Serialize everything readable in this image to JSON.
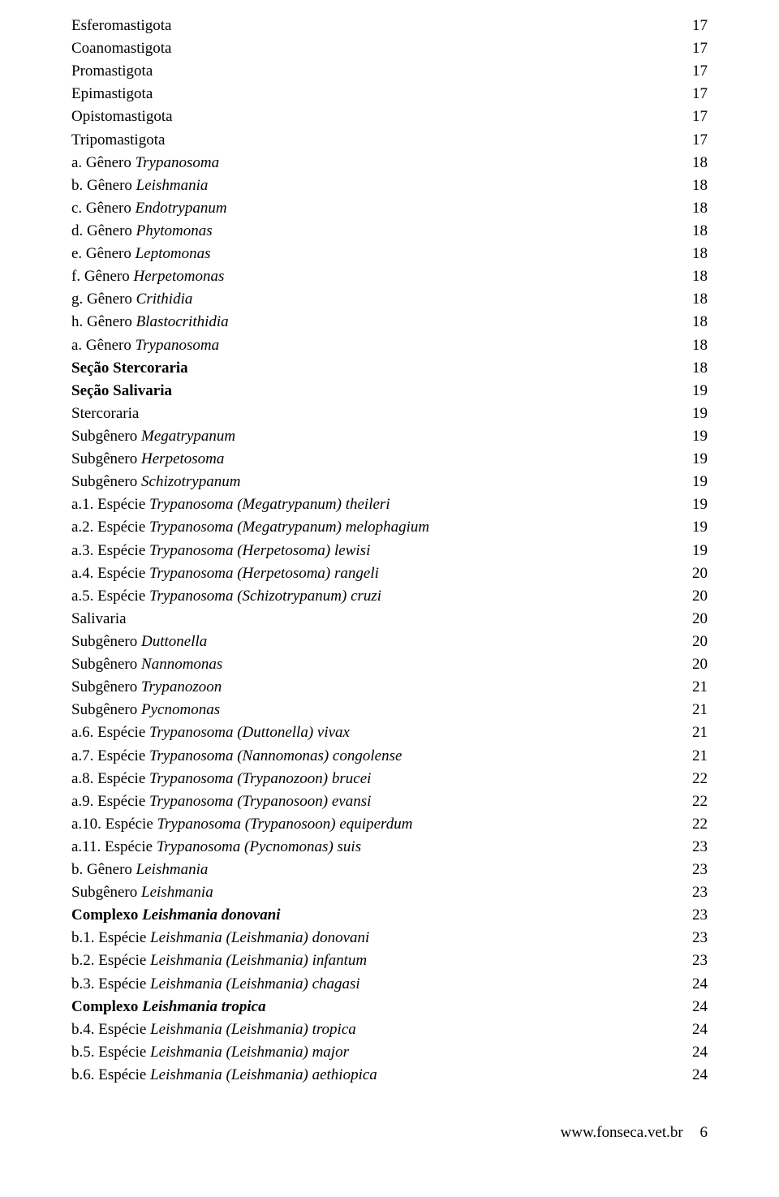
{
  "toc": [
    {
      "segments": [
        {
          "t": "Esferomastigota"
        }
      ],
      "page": "17"
    },
    {
      "segments": [
        {
          "t": "Coanomastigota"
        }
      ],
      "page": "17"
    },
    {
      "segments": [
        {
          "t": "Promastigota"
        }
      ],
      "page": "17"
    },
    {
      "segments": [
        {
          "t": "Epimastigota"
        }
      ],
      "page": "17"
    },
    {
      "segments": [
        {
          "t": "Opistomastigota"
        }
      ],
      "page": "17"
    },
    {
      "segments": [
        {
          "t": "Tripomastigota"
        }
      ],
      "page": "17"
    },
    {
      "segments": [
        {
          "t": "a. Gênero "
        },
        {
          "t": "Trypanosoma",
          "italic": true
        }
      ],
      "page": "18"
    },
    {
      "segments": [
        {
          "t": "b. Gênero "
        },
        {
          "t": "Leishmania",
          "italic": true
        }
      ],
      "page": "18"
    },
    {
      "segments": [
        {
          "t": "c. Gênero "
        },
        {
          "t": "Endotrypanum",
          "italic": true
        }
      ],
      "page": "18"
    },
    {
      "segments": [
        {
          "t": "d. Gênero "
        },
        {
          "t": "Phytomonas",
          "italic": true
        }
      ],
      "page": "18"
    },
    {
      "segments": [
        {
          "t": "e. Gênero "
        },
        {
          "t": "Leptomonas",
          "italic": true
        }
      ],
      "page": "18"
    },
    {
      "segments": [
        {
          "t": "f. Gênero "
        },
        {
          "t": "Herpetomonas",
          "italic": true
        }
      ],
      "page": "18"
    },
    {
      "segments": [
        {
          "t": "g. Gênero "
        },
        {
          "t": "Crithidia",
          "italic": true
        }
      ],
      "page": "18"
    },
    {
      "segments": [
        {
          "t": "h. Gênero "
        },
        {
          "t": "Blastocrithidia",
          "italic": true
        }
      ],
      "page": "18"
    },
    {
      "segments": [
        {
          "t": "a. Gênero "
        },
        {
          "t": "Trypanosoma",
          "italic": true
        }
      ],
      "page": "18"
    },
    {
      "segments": [
        {
          "t": "Seção Stercoraria",
          "bold": true
        }
      ],
      "page": "18"
    },
    {
      "segments": [
        {
          "t": "Seção Salivaria",
          "bold": true
        }
      ],
      "page": "19"
    },
    {
      "segments": [
        {
          "t": "Stercoraria"
        }
      ],
      "page": "19"
    },
    {
      "segments": [
        {
          "t": "Subgênero "
        },
        {
          "t": "Megatrypanum",
          "italic": true
        }
      ],
      "page": "19"
    },
    {
      "segments": [
        {
          "t": "Subgênero "
        },
        {
          "t": "Herpetosoma",
          "italic": true
        }
      ],
      "page": "19"
    },
    {
      "segments": [
        {
          "t": "Subgênero "
        },
        {
          "t": "Schizotrypanum",
          "italic": true
        }
      ],
      "page": "19"
    },
    {
      "segments": [
        {
          "t": "a.1. Espécie "
        },
        {
          "t": "Trypanosoma (Megatrypanum) theileri",
          "italic": true
        }
      ],
      "page": "19"
    },
    {
      "segments": [
        {
          "t": "a.2. Espécie "
        },
        {
          "t": "Trypanosoma (Megatrypanum) melophagium",
          "italic": true
        }
      ],
      "page": "19"
    },
    {
      "segments": [
        {
          "t": "a.3. Espécie "
        },
        {
          "t": "Trypanosoma (Herpetosoma) lewisi",
          "italic": true
        }
      ],
      "page": "19"
    },
    {
      "segments": [
        {
          "t": "a.4. Espécie "
        },
        {
          "t": "Trypanosoma (Herpetosoma) rangeli",
          "italic": true
        }
      ],
      "page": "20"
    },
    {
      "segments": [
        {
          "t": "a.5. Espécie "
        },
        {
          "t": "Trypanosoma (Schizotrypanum) cruzi",
          "italic": true
        }
      ],
      "page": "20"
    },
    {
      "segments": [
        {
          "t": "Salivaria"
        }
      ],
      "page": "20"
    },
    {
      "segments": [
        {
          "t": "Subgênero "
        },
        {
          "t": "Duttonella",
          "italic": true
        }
      ],
      "page": "20"
    },
    {
      "segments": [
        {
          "t": "Subgênero "
        },
        {
          "t": "Nannomonas",
          "italic": true
        }
      ],
      "page": "20"
    },
    {
      "segments": [
        {
          "t": "Subgênero "
        },
        {
          "t": "Trypanozoon",
          "italic": true
        }
      ],
      "page": "21"
    },
    {
      "segments": [
        {
          "t": "Subgênero "
        },
        {
          "t": "Pycnomonas",
          "italic": true
        }
      ],
      "page": "21"
    },
    {
      "segments": [
        {
          "t": "a.6. Espécie "
        },
        {
          "t": "Trypanosoma (Duttonella) vivax",
          "italic": true
        }
      ],
      "page": "21"
    },
    {
      "segments": [
        {
          "t": "a.7. Espécie "
        },
        {
          "t": "Trypanosoma (Nannomonas) congolense",
          "italic": true
        }
      ],
      "page": "21"
    },
    {
      "segments": [
        {
          "t": "a.8. Espécie "
        },
        {
          "t": "Trypanosoma (Trypanozoon) brucei",
          "italic": true
        }
      ],
      "page": "22"
    },
    {
      "segments": [
        {
          "t": "a.9. Espécie "
        },
        {
          "t": "Trypanosoma (Trypanosoon) evansi",
          "italic": true
        }
      ],
      "page": "22"
    },
    {
      "segments": [
        {
          "t": "a.10. Espécie "
        },
        {
          "t": "Trypanosoma (Trypanosoon) equiperdum",
          "italic": true
        }
      ],
      "page": "22"
    },
    {
      "segments": [
        {
          "t": "a.11. Espécie "
        },
        {
          "t": "Trypanosoma (Pycnomonas) suis",
          "italic": true
        }
      ],
      "page": "23"
    },
    {
      "segments": [
        {
          "t": "b. Gênero "
        },
        {
          "t": "Leishmania",
          "italic": true
        }
      ],
      "page": "23"
    },
    {
      "segments": [
        {
          "t": "Subgênero "
        },
        {
          "t": "Leishmania",
          "italic": true
        }
      ],
      "page": "23"
    },
    {
      "segments": [
        {
          "t": "Complexo ",
          "bold": true
        },
        {
          "t": "Leishmania donovani",
          "bold": true,
          "italic": true
        }
      ],
      "page": "23"
    },
    {
      "segments": [
        {
          "t": "b.1. Espécie "
        },
        {
          "t": "Leishmania (Leishmania) donovani",
          "italic": true
        }
      ],
      "page": "23"
    },
    {
      "segments": [
        {
          "t": "b.2. Espécie "
        },
        {
          "t": "Leishmania (Leishmania) infantum",
          "italic": true
        }
      ],
      "page": "23"
    },
    {
      "segments": [
        {
          "t": "b.3. Espécie "
        },
        {
          "t": "Leishmania (Leishmania) chagasi",
          "italic": true
        }
      ],
      "page": "24"
    },
    {
      "segments": [
        {
          "t": "Complexo ",
          "bold": true
        },
        {
          "t": "Leishmania tropica",
          "bold": true,
          "italic": true
        }
      ],
      "page": "24"
    },
    {
      "segments": [
        {
          "t": "b.4. Espécie "
        },
        {
          "t": "Leishmania (Leishmania) tropica",
          "italic": true
        }
      ],
      "page": "24"
    },
    {
      "segments": [
        {
          "t": "b.5. Espécie "
        },
        {
          "t": "Leishmania (Leishmania) major",
          "italic": true
        }
      ],
      "page": "24"
    },
    {
      "segments": [
        {
          "t": "b.6. Espécie "
        },
        {
          "t": "Leishmania (Leishmania) aethiopica",
          "italic": true
        }
      ],
      "page": "24"
    }
  ],
  "footer": {
    "url": "www.fonseca.vet.br",
    "page_number": "6"
  }
}
